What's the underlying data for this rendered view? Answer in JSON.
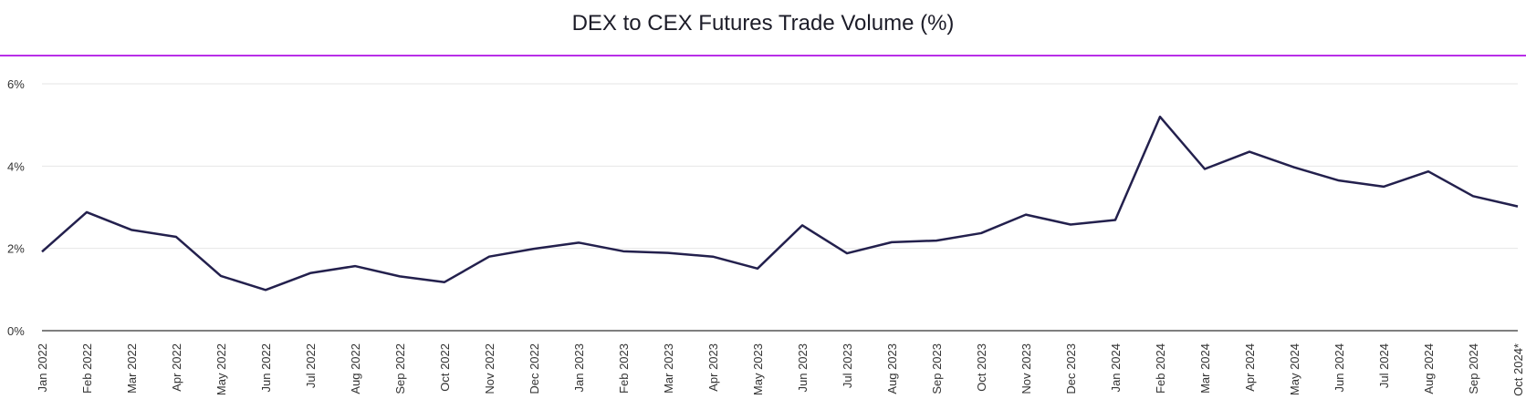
{
  "chart_data": {
    "type": "line",
    "title": "DEX to CEX Futures Trade Volume (%)",
    "xlabel": "",
    "ylabel": "",
    "ylim": [
      0,
      6
    ],
    "yticks": [
      0,
      2,
      4,
      6
    ],
    "ytick_labels": [
      "0%",
      "2%",
      "4%",
      "6%"
    ],
    "grid": true,
    "line_color": "#23204d",
    "accent_color": "#b82ee8",
    "categories": [
      "Jan 2022",
      "Feb 2022",
      "Mar 2022",
      "Apr 2022",
      "May 2022",
      "Jun 2022",
      "Jul 2022",
      "Aug 2022",
      "Sep 2022",
      "Oct 2022",
      "Nov 2022",
      "Dec 2022",
      "Jan 2023",
      "Feb 2023",
      "Mar 2023",
      "Apr 2023",
      "May 2023",
      "Jun 2023",
      "Jul 2023",
      "Aug 2023",
      "Sep 2023",
      "Oct 2023",
      "Nov 2023",
      "Dec 2023",
      "Jan 2024",
      "Feb 2024",
      "Mar 2024",
      "Apr 2024",
      "May 2024",
      "Jun 2024",
      "Jul 2024",
      "Aug 2024",
      "Sep 2024",
      "Oct 2024*"
    ],
    "series": [
      {
        "name": "DEX to CEX Futures Trade Volume (%)",
        "values": [
          1.92,
          2.88,
          2.45,
          2.28,
          1.33,
          0.99,
          1.4,
          1.57,
          1.32,
          1.18,
          1.8,
          1.99,
          2.14,
          1.93,
          1.89,
          1.8,
          1.51,
          2.56,
          1.88,
          2.15,
          2.19,
          2.37,
          2.82,
          2.58,
          2.69,
          5.2,
          3.93,
          4.35,
          3.97,
          3.65,
          3.5,
          3.87,
          3.27,
          3.02
        ]
      }
    ]
  }
}
